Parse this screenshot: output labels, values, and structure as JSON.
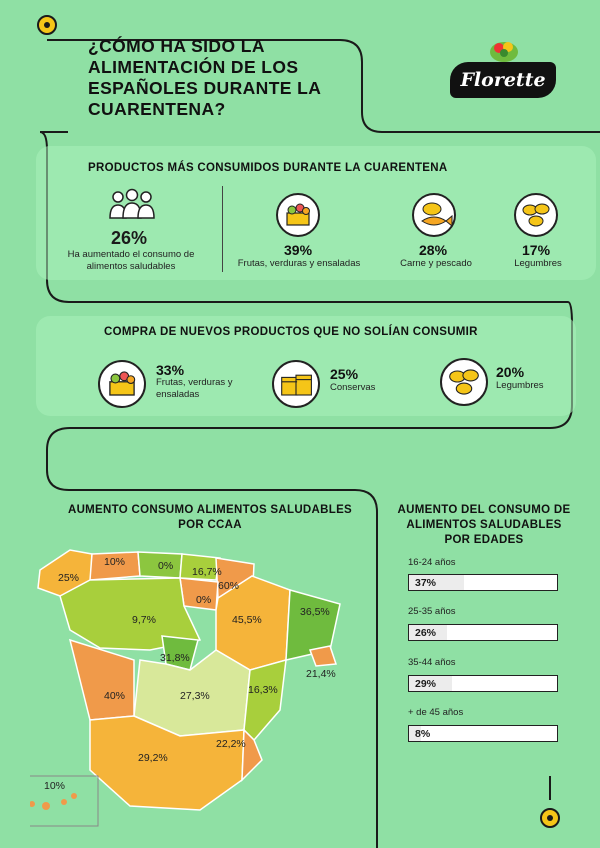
{
  "header": {
    "title": "¿CÓMO HA SIDO LA ALIMENTACIÓN DE LOS ESPAÑOLES DURANTE LA CUARENTENA?",
    "brand": "Florette"
  },
  "section1": {
    "title": "PRODUCTOS MÁS CONSUMIDOS DURANTE LA CUARENTENA",
    "highlight": {
      "value": "26%",
      "caption": "Ha aumentado el consumo de alimentos saludables"
    },
    "items": [
      {
        "value": "39%",
        "label": "Frutas, verduras y ensaladas",
        "icon": "vegetables-icon"
      },
      {
        "value": "28%",
        "label": "Carne y pescado",
        "icon": "meat-fish-icon"
      },
      {
        "value": "17%",
        "label": "Legumbres",
        "icon": "legumes-icon"
      }
    ]
  },
  "section2": {
    "title": "COMPRA DE NUEVOS PRODUCTOS QUE NO SOLÍAN CONSUMIR",
    "items": [
      {
        "value": "33%",
        "label": "Frutas, verduras y ensaladas",
        "icon": "vegetables-icon"
      },
      {
        "value": "25%",
        "label": "Conservas",
        "icon": "cans-icon"
      },
      {
        "value": "20%",
        "label": "Legumbres",
        "icon": "legumes-icon"
      }
    ]
  },
  "map_section": {
    "title": "AUMENTO CONSUMO ALIMENTOS SALUDABLES POR CCAA",
    "regions": [
      {
        "value": "25%",
        "color": "#f5b43a"
      },
      {
        "value": "10%",
        "color": "#f09a4a"
      },
      {
        "value": "0%",
        "color": "#8cc63f"
      },
      {
        "value": "16,7%",
        "color": "#a8cf3c"
      },
      {
        "value": "60%",
        "color": "#f09a4a"
      },
      {
        "value": "0%",
        "color": "#f09a4a"
      },
      {
        "value": "9,7%",
        "color": "#a8cf3c"
      },
      {
        "value": "45,5%",
        "color": "#f5b43a"
      },
      {
        "value": "36,5%",
        "color": "#6fbb3e"
      },
      {
        "value": "31,8%",
        "color": "#6fbb3e"
      },
      {
        "value": "27,3%",
        "color": "#d8e89a"
      },
      {
        "value": "16,3%",
        "color": "#a8cf3c"
      },
      {
        "value": "21,4%",
        "color": "#f09a4a"
      },
      {
        "value": "40%",
        "color": "#f09a4a"
      },
      {
        "value": "29,2%",
        "color": "#f5b43a"
      },
      {
        "value": "22,2%",
        "color": "#f09a4a"
      },
      {
        "value": "10%",
        "color": "#f09a4a"
      }
    ]
  },
  "age_section": {
    "title": "AUMENTO DEL CONSUMO DE ALIMENTOS SALUDABLES POR EDADES",
    "groups": [
      {
        "label": "16-24 años",
        "value": "37%",
        "fraction": 0.37
      },
      {
        "label": "25-35 años",
        "value": "26%",
        "fraction": 0.26
      },
      {
        "label": "35-44 años",
        "value": "29%",
        "fraction": 0.29
      },
      {
        "label": "+ de 45 años",
        "value": "8%",
        "fraction": 0.08
      }
    ]
  }
}
